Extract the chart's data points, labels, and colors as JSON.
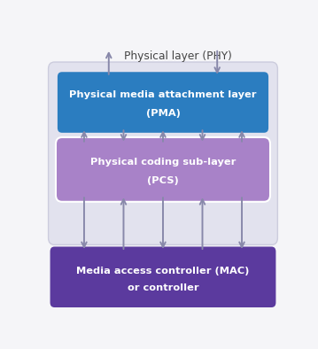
{
  "fig_width": 3.59,
  "fig_height": 3.94,
  "bg_color": "#f5f5f8",
  "outer_box_color": "#e2e2ee",
  "outer_box_edge": "#ccccdd",
  "pma_label_line1": "Physical media attachment layer",
  "pma_label_line2": "(PMA)",
  "pma_color": "#2B7DC0",
  "pma_text_color": "#ffffff",
  "pcs_label_line1": "Physical coding sub-layer",
  "pcs_label_line2": "(PCS)",
  "pcs_color": "#A882C8",
  "pcs_text_color": "#ffffff",
  "mac_label_line1": "Media access controller (MAC)",
  "mac_label_line2": "or controller",
  "mac_color": "#5B3A9E",
  "mac_text_color": "#ffffff",
  "phy_label": "Physical layer (PHY)",
  "phy_text_color": "#444444",
  "arrow_color": "#8888aa",
  "arrow_lw": 1.4,
  "mutation_scale": 10
}
